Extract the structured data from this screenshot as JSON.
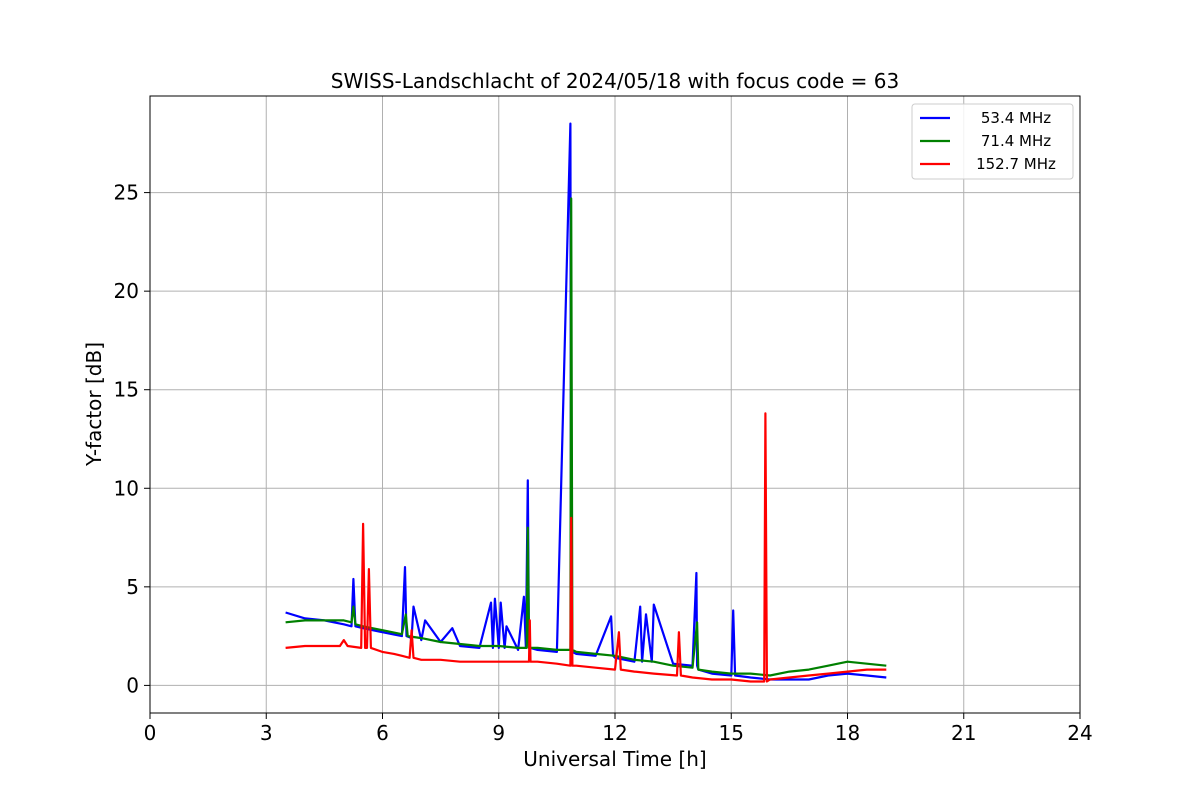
{
  "chart_data": {
    "type": "line",
    "title": "SWISS-Landschlacht of 2024/05/18 with focus code = 63",
    "xlabel": "Universal Time [h]",
    "ylabel": "Y-factor [dB]",
    "xlim": [
      0,
      24
    ],
    "ylim": [
      -1.4,
      29.9
    ],
    "xticks": [
      0,
      3,
      6,
      9,
      12,
      15,
      18,
      21,
      24
    ],
    "yticks": [
      0,
      5,
      10,
      15,
      20,
      25
    ],
    "grid": true,
    "legend_position": "top-right",
    "series": [
      {
        "name": "53.4 MHz",
        "color": "#0000ff",
        "x": [
          3.5,
          4.0,
          4.5,
          5.0,
          5.2,
          5.25,
          5.3,
          5.5,
          6.0,
          6.5,
          6.58,
          6.62,
          6.75,
          6.8,
          7.0,
          7.1,
          7.5,
          7.8,
          8.0,
          8.5,
          8.8,
          8.85,
          8.9,
          9.0,
          9.05,
          9.15,
          9.2,
          9.5,
          9.65,
          9.7,
          9.75,
          9.78,
          9.82,
          10.0,
          10.5,
          10.85,
          10.87,
          10.9,
          11.0,
          11.5,
          11.9,
          11.95,
          12.0,
          12.5,
          12.65,
          12.7,
          12.8,
          12.95,
          13.0,
          13.5,
          14.0,
          14.1,
          14.12,
          14.15,
          14.5,
          15.0,
          15.05,
          15.1,
          15.5,
          16.0,
          16.5,
          17.0,
          17.5,
          18.0,
          18.5,
          19.0
        ],
        "values": [
          3.7,
          3.4,
          3.3,
          3.1,
          3.0,
          5.4,
          3.0,
          2.9,
          2.7,
          2.5,
          6.0,
          2.5,
          2.4,
          4.0,
          2.3,
          3.3,
          2.2,
          2.9,
          2.0,
          1.9,
          4.2,
          1.9,
          4.4,
          1.9,
          4.2,
          1.9,
          3.0,
          1.8,
          4.5,
          1.9,
          10.4,
          2.0,
          1.9,
          1.8,
          1.7,
          28.5,
          2.0,
          1.7,
          1.6,
          1.5,
          3.5,
          1.5,
          1.4,
          1.2,
          4.0,
          1.2,
          3.6,
          1.2,
          4.1,
          1.1,
          1.0,
          5.7,
          1.0,
          0.8,
          0.6,
          0.5,
          3.8,
          0.5,
          0.4,
          0.3,
          0.3,
          0.3,
          0.5,
          0.6,
          0.5,
          0.4
        ]
      },
      {
        "name": "71.4 MHz",
        "color": "#008000",
        "x": [
          3.5,
          4.0,
          4.5,
          5.0,
          5.2,
          5.25,
          5.3,
          5.5,
          6.0,
          6.5,
          6.6,
          6.65,
          7.0,
          7.5,
          8.0,
          8.5,
          9.0,
          9.5,
          9.72,
          9.75,
          9.78,
          10.0,
          10.5,
          10.85,
          10.87,
          10.9,
          11.0,
          11.5,
          12.0,
          12.5,
          13.0,
          13.5,
          14.0,
          14.12,
          14.15,
          14.5,
          15.0,
          15.5,
          16.0,
          16.5,
          17.0,
          17.5,
          18.0,
          18.5,
          19.0
        ],
        "values": [
          3.2,
          3.3,
          3.3,
          3.3,
          3.2,
          4.0,
          3.1,
          3.0,
          2.8,
          2.6,
          3.6,
          2.5,
          2.4,
          2.2,
          2.1,
          2.0,
          2.0,
          1.9,
          1.9,
          8.0,
          1.9,
          1.9,
          1.8,
          1.8,
          24.7,
          1.8,
          1.7,
          1.6,
          1.5,
          1.3,
          1.2,
          1.0,
          0.9,
          3.2,
          0.8,
          0.7,
          0.6,
          0.6,
          0.5,
          0.7,
          0.8,
          1.0,
          1.2,
          1.1,
          1.0
        ]
      },
      {
        "name": "152.7 MHz",
        "color": "#ff0000",
        "x": [
          3.5,
          4.0,
          4.5,
          4.9,
          5.0,
          5.1,
          5.45,
          5.5,
          5.55,
          5.6,
          5.65,
          5.7,
          6.0,
          6.3,
          6.5,
          6.7,
          6.75,
          6.8,
          7.0,
          7.5,
          8.0,
          8.5,
          9.0,
          9.5,
          9.78,
          9.8,
          9.82,
          10.0,
          10.5,
          10.85,
          10.87,
          10.9,
          11.0,
          11.5,
          12.0,
          12.1,
          12.15,
          12.5,
          13.0,
          13.6,
          13.65,
          13.7,
          14.0,
          14.5,
          15.0,
          15.5,
          15.85,
          15.88,
          15.92,
          16.0,
          16.5,
          17.0,
          17.5,
          18.0,
          18.5,
          19.0
        ],
        "values": [
          1.9,
          2.0,
          2.0,
          2.0,
          2.3,
          2.0,
          1.9,
          8.2,
          1.9,
          1.9,
          5.9,
          1.9,
          1.7,
          1.6,
          1.5,
          1.4,
          2.8,
          1.4,
          1.3,
          1.3,
          1.2,
          1.2,
          1.2,
          1.2,
          1.2,
          3.3,
          1.2,
          1.2,
          1.1,
          1.0,
          8.5,
          1.0,
          1.0,
          0.9,
          0.8,
          2.7,
          0.8,
          0.7,
          0.6,
          0.5,
          2.7,
          0.5,
          0.4,
          0.3,
          0.3,
          0.2,
          0.2,
          13.8,
          0.2,
          0.3,
          0.4,
          0.5,
          0.6,
          0.7,
          0.8,
          0.8
        ]
      }
    ]
  }
}
